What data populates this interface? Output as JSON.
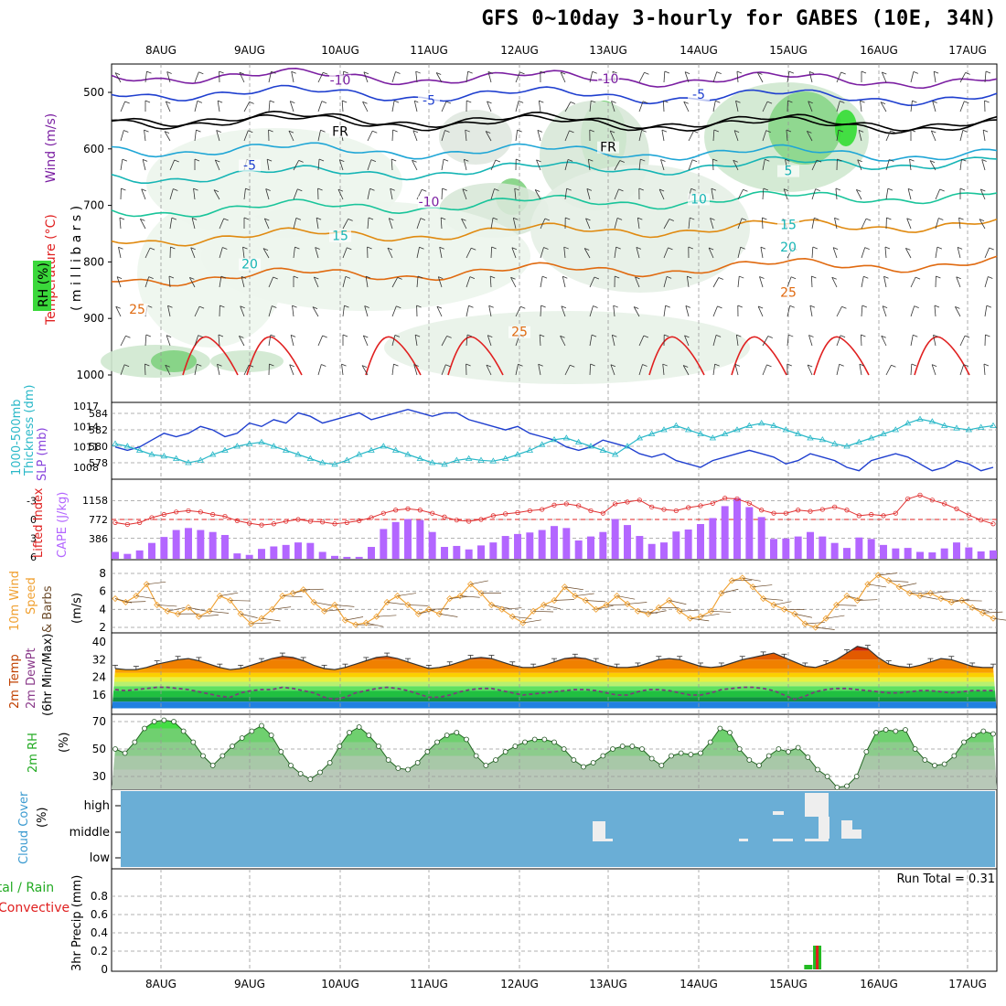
{
  "title": "GFS 0~10day 3-hourly for GABES (10E, 34N)",
  "date_labels": [
    "8AUG",
    "9AUG",
    "10AUG",
    "11AUG",
    "12AUG",
    "13AUG",
    "14AUG",
    "15AUG",
    "16AUG",
    "17AUG"
  ],
  "colors": {
    "grid": "#999999",
    "axis": "#000000",
    "purple": "#7b1fa2",
    "blue": "#1f3fcf",
    "cyan": "#1fa6d6",
    "teal": "#16b5b5",
    "green_teal": "#19c49a",
    "orange": "#e08a10",
    "dark_orange": "#e06a10",
    "red": "#e02020",
    "rh_green": "#32c832",
    "cape": "#b366ff",
    "lifted": "#e03030",
    "wind10": "#f0a030",
    "cloud": "#6aaed6"
  },
  "chart_data": [
    {
      "type": "line",
      "panel": "upper-air",
      "ylabels": [
        "Wind (m/s)",
        "Temperature (°C)",
        "RH (%)",
        "( m i l l i b a r s )"
      ],
      "yticks": [
        500,
        600,
        700,
        800,
        900,
        1000
      ],
      "ylim": [
        1000,
        450
      ],
      "contour_labels": [
        {
          "text": "-10",
          "at": "10AUG",
          "p": 485
        },
        {
          "text": "-10",
          "at": "13AUG",
          "p": 482
        },
        {
          "text": "-5",
          "at": "11AUG",
          "p": 520
        },
        {
          "text": "-5",
          "at": "14AUG",
          "p": 510
        },
        {
          "text": "FR",
          "at": "10AUG",
          "p": 575
        },
        {
          "text": "FR",
          "at": "13AUG",
          "p": 603
        },
        {
          "text": "-5",
          "at": "9AUG",
          "p": 635
        },
        {
          "text": "5",
          "at": "15AUG",
          "p": 645
        },
        {
          "text": "-10",
          "at": "11AUG",
          "p": 700
        },
        {
          "text": "10",
          "at": "14AUG",
          "p": 695
        },
        {
          "text": "15",
          "at": "10AUG",
          "p": 760
        },
        {
          "text": "15",
          "at": "15AUG",
          "p": 740
        },
        {
          "text": "20",
          "at": "9AUG",
          "p": 810
        },
        {
          "text": "20",
          "at": "15AUG",
          "p": 780
        },
        {
          "text": "25",
          "at": "7AUG",
          "p": 890
        },
        {
          "text": "25",
          "at": "12AUG",
          "p": 930
        },
        {
          "text": "25",
          "at": "15AUG",
          "p": 860
        }
      ]
    },
    {
      "type": "line",
      "panel": "thickness-slp",
      "ylabels": [
        "1000-500mb",
        "Thickness (dm)",
        "SLP (mb)"
      ],
      "left_ticks": [
        584,
        582,
        580,
        578
      ],
      "right_ticks": [
        1017,
        1014,
        1011,
        1008
      ],
      "series": [
        {
          "name": "SLP (mb)",
          "values": [
            1011,
            1010.5,
            1011,
            1012,
            1013,
            1012.5,
            1013,
            1014,
            1013.5,
            1012.5,
            1013,
            1014.5,
            1014,
            1015,
            1014.5,
            1016,
            1015.5,
            1014.5,
            1015,
            1015.5,
            1016,
            1015,
            1015.5,
            1016,
            1016.5,
            1016,
            1015.5,
            1016,
            1016,
            1015,
            1014.5,
            1014,
            1013.5,
            1014,
            1013,
            1012.5,
            1012,
            1011,
            1010.5,
            1011,
            1012,
            1011.5,
            1011,
            1010,
            1009.5,
            1010,
            1009,
            1008.5,
            1008,
            1009,
            1009.5,
            1010,
            1010.5,
            1010,
            1009.5,
            1008.5,
            1009,
            1010,
            1009.5,
            1009,
            1008,
            1007.5,
            1009,
            1009.5,
            1010,
            1009.5,
            1008.5,
            1007.5,
            1008,
            1009,
            1008.5,
            1007.5,
            1008
          ]
        },
        {
          "name": "1000-500mb Thickness (dm)",
          "values": [
            580.3,
            580,
            579.5,
            579,
            578.8,
            578.5,
            578,
            578.3,
            579,
            579.5,
            580,
            580.3,
            580.5,
            580,
            579.5,
            579,
            578.5,
            578,
            577.8,
            578.3,
            579,
            579.5,
            580,
            579.5,
            579,
            578.5,
            578,
            577.8,
            578.3,
            578.5,
            578.3,
            578.2,
            578.5,
            579,
            579.5,
            580.2,
            580.8,
            581,
            580.5,
            580,
            579.5,
            579,
            580,
            581,
            581.5,
            582,
            582.5,
            582,
            581.5,
            581,
            581.5,
            582,
            582.5,
            582.8,
            582.5,
            582,
            581.5,
            581,
            580.8,
            580.3,
            580,
            580.5,
            581,
            581.5,
            582,
            582.8,
            583.3,
            583,
            582.5,
            582.2,
            582,
            582.3,
            582.5
          ]
        }
      ]
    },
    {
      "type": "bar",
      "panel": "cape-lifted-index",
      "ylabels": [
        "Lifted Index",
        "CAPE (J/kg)"
      ],
      "left_ticks": [
        -3,
        0,
        3,
        6
      ],
      "right_ticks": [
        1158,
        772,
        386
      ],
      "series": [
        {
          "name": "CAPE (J/kg)",
          "values": [
            120,
            80,
            150,
            300,
            420,
            560,
            600,
            560,
            520,
            460,
            90,
            60,
            180,
            230,
            260,
            310,
            300,
            120,
            40,
            20,
            20,
            220,
            580,
            720,
            780,
            760,
            520,
            220,
            240,
            170,
            250,
            310,
            440,
            480,
            510,
            560,
            640,
            600,
            350,
            430,
            520,
            780,
            660,
            440,
            280,
            310,
            530,
            570,
            680,
            800,
            1040,
            1200,
            1020,
            820,
            380,
            390,
            430,
            520,
            430,
            300,
            200,
            410,
            380,
            260,
            190,
            200,
            120,
            110,
            190,
            310,
            210,
            130,
            150
          ]
        },
        {
          "name": "Lifted Index",
          "values": [
            0.5,
            0.8,
            0.5,
            -0.3,
            -0.8,
            -1.2,
            -1.4,
            -1.2,
            -0.8,
            -0.5,
            0.2,
            0.6,
            0.9,
            0.7,
            0.3,
            0.0,
            0.3,
            0.4,
            0.7,
            0.5,
            0.2,
            -0.3,
            -1.0,
            -1.5,
            -1.7,
            -1.5,
            -1.0,
            -0.4,
            0.1,
            0.3,
            0.0,
            -0.6,
            -0.9,
            -1.1,
            -1.4,
            -1.6,
            -2.3,
            -2.5,
            -2.2,
            -1.4,
            -1.0,
            -2.5,
            -2.8,
            -3.1,
            -2.0,
            -1.6,
            -1.4,
            -1.9,
            -2.2,
            -2.6,
            -3.4,
            -3.3,
            -2.6,
            -1.5,
            -1.0,
            -1.0,
            -1.5,
            -1.3,
            -1.6,
            -2.0,
            -1.5,
            -0.6,
            -0.8,
            -0.6,
            -1.0,
            -3.3,
            -3.9,
            -3.1,
            -2.5,
            -1.7,
            -0.7,
            0.1,
            0.7
          ]
        }
      ]
    },
    {
      "type": "line",
      "panel": "10m-wind",
      "ylabels": [
        "10m Wind",
        "Speed",
        "& Barbs",
        "(m/s)"
      ],
      "yticks": [
        8,
        6,
        4,
        2
      ],
      "ylim": [
        2,
        9
      ],
      "series": [
        {
          "name": "10m Wind Speed",
          "values": [
            5.2,
            4.8,
            5.5,
            6.8,
            4.5,
            3.8,
            3.5,
            4.2,
            3.2,
            3.8,
            5.5,
            5.0,
            3.5,
            2.4,
            3.0,
            4.0,
            5.5,
            5.8,
            6.2,
            4.8,
            3.8,
            4.5,
            2.8,
            2.3,
            2.5,
            3.2,
            4.8,
            5.5,
            4.5,
            3.5,
            4.0,
            3.5,
            5.2,
            5.5,
            6.8,
            5.8,
            4.5,
            4.0,
            3.2,
            2.5,
            3.8,
            4.5,
            5.0,
            6.5,
            5.5,
            5.0,
            4.0,
            4.5,
            5.5,
            4.6,
            3.8,
            3.5,
            4.2,
            5.0,
            3.8,
            3.0,
            3.2,
            3.8,
            5.8,
            7.2,
            7.5,
            6.5,
            5.2,
            4.5,
            4.0,
            3.5,
            2.4,
            2.0,
            3.0,
            4.5,
            5.5,
            5.0,
            6.8,
            7.8,
            7.2,
            6.5,
            5.8,
            5.5,
            5.8,
            5.2,
            4.8,
            5.0,
            4.2,
            3.6,
            3.0
          ]
        }
      ]
    },
    {
      "type": "area",
      "panel": "2m-temp",
      "ylabels": [
        "2m Temp",
        "2m DewPt",
        "(6hr Min/Max)"
      ],
      "yticks": [
        40,
        32,
        24,
        16
      ],
      "series": [
        {
          "name": "2m Temp",
          "values": [
            28,
            27.5,
            27.5,
            28.5,
            30,
            31,
            32,
            32.5,
            31.5,
            30,
            28.5,
            27.5,
            28,
            29.5,
            31,
            32.5,
            33.5,
            33,
            31.5,
            29.5,
            28,
            27.5,
            28.5,
            30,
            31.5,
            33,
            33.5,
            32.5,
            31,
            29.5,
            28,
            28.5,
            29.5,
            31,
            32.5,
            33,
            32.5,
            31,
            29.5,
            28.5,
            28.5,
            29.5,
            31,
            32.5,
            33,
            32.5,
            31,
            29.5,
            28.5,
            28.5,
            29,
            30.5,
            32,
            32.5,
            32,
            30.5,
            29,
            28.5,
            29,
            30.5,
            32,
            33,
            34,
            35,
            33,
            31,
            29,
            28.5,
            30,
            32,
            35,
            38,
            37,
            33,
            30,
            29,
            28.5,
            29.5,
            31,
            32.5,
            32,
            30.5,
            29,
            28.5,
            28.5
          ]
        },
        {
          "name": "2m DewPt",
          "values": [
            18.5,
            18,
            18.5,
            19,
            19.5,
            19.5,
            19,
            18.5,
            17.5,
            16.5,
            15.5,
            15,
            17,
            18,
            18.5,
            18.5,
            19.5,
            19,
            18,
            17,
            15,
            14,
            15,
            17,
            18,
            19,
            19.5,
            19,
            18,
            16.5,
            15,
            15,
            16,
            17.5,
            18.5,
            19,
            19,
            18,
            17,
            16,
            16.5,
            17,
            17.5,
            18,
            18.5,
            18.5,
            18,
            17,
            16,
            16,
            17.5,
            18.5,
            18.5,
            18,
            17,
            16,
            16,
            17,
            18.5,
            19,
            19.5,
            19.5,
            19,
            18,
            16,
            14,
            15.5,
            17.5,
            18.5,
            19,
            19,
            18.5,
            18,
            17.5,
            17,
            17,
            17.5,
            18,
            18,
            17.5,
            17,
            17.5,
            18,
            18,
            18
          ]
        }
      ]
    },
    {
      "type": "area",
      "panel": "2m-rh",
      "ylabels": [
        "2m RH",
        "(%)"
      ],
      "yticks": [
        70,
        50,
        30
      ],
      "series": [
        {
          "name": "2m RH",
          "values": [
            50,
            47,
            55,
            65,
            70,
            71,
            70,
            63,
            55,
            45,
            38,
            45,
            52,
            58,
            63,
            67,
            60,
            48,
            38,
            32,
            28,
            33,
            40,
            52,
            62,
            66,
            60,
            52,
            42,
            36,
            35,
            40,
            48,
            55,
            60,
            62,
            57,
            45,
            38,
            42,
            48,
            52,
            55,
            57,
            57,
            55,
            50,
            42,
            37,
            40,
            45,
            50,
            52,
            52,
            50,
            43,
            38,
            45,
            47,
            46,
            47,
            55,
            65,
            62,
            50,
            42,
            38,
            45,
            50,
            48,
            51,
            44,
            35,
            30,
            22,
            23,
            30,
            48,
            62,
            64,
            63,
            64,
            50,
            42,
            38,
            39,
            45,
            55,
            60,
            63,
            61
          ]
        }
      ]
    },
    {
      "type": "heatmap",
      "panel": "cloud-cover",
      "ylabels": [
        "Cloud Cover",
        "(%)"
      ],
      "yticks": [
        "high",
        "middle",
        "low"
      ]
    },
    {
      "type": "bar",
      "panel": "precip",
      "ylabels": [
        "Total / Rain",
        "Convective",
        "3hr Precip (mm)"
      ],
      "yticks": [
        0,
        0.2,
        0.4,
        0.6,
        0.8
      ],
      "annotation": "Run Total = 0.31",
      "series": [
        {
          "name": "Total / Rain",
          "values": [
            {
              "at": "15AUG",
              "offset": 0.22,
              "v": 0.05
            },
            {
              "at": "15AUG",
              "offset": 0.32,
              "v": 0.26
            }
          ]
        },
        {
          "name": "Convective",
          "values": [
            {
              "at": "15AUG",
              "offset": 0.32,
              "v": 0.26
            }
          ]
        }
      ]
    }
  ]
}
